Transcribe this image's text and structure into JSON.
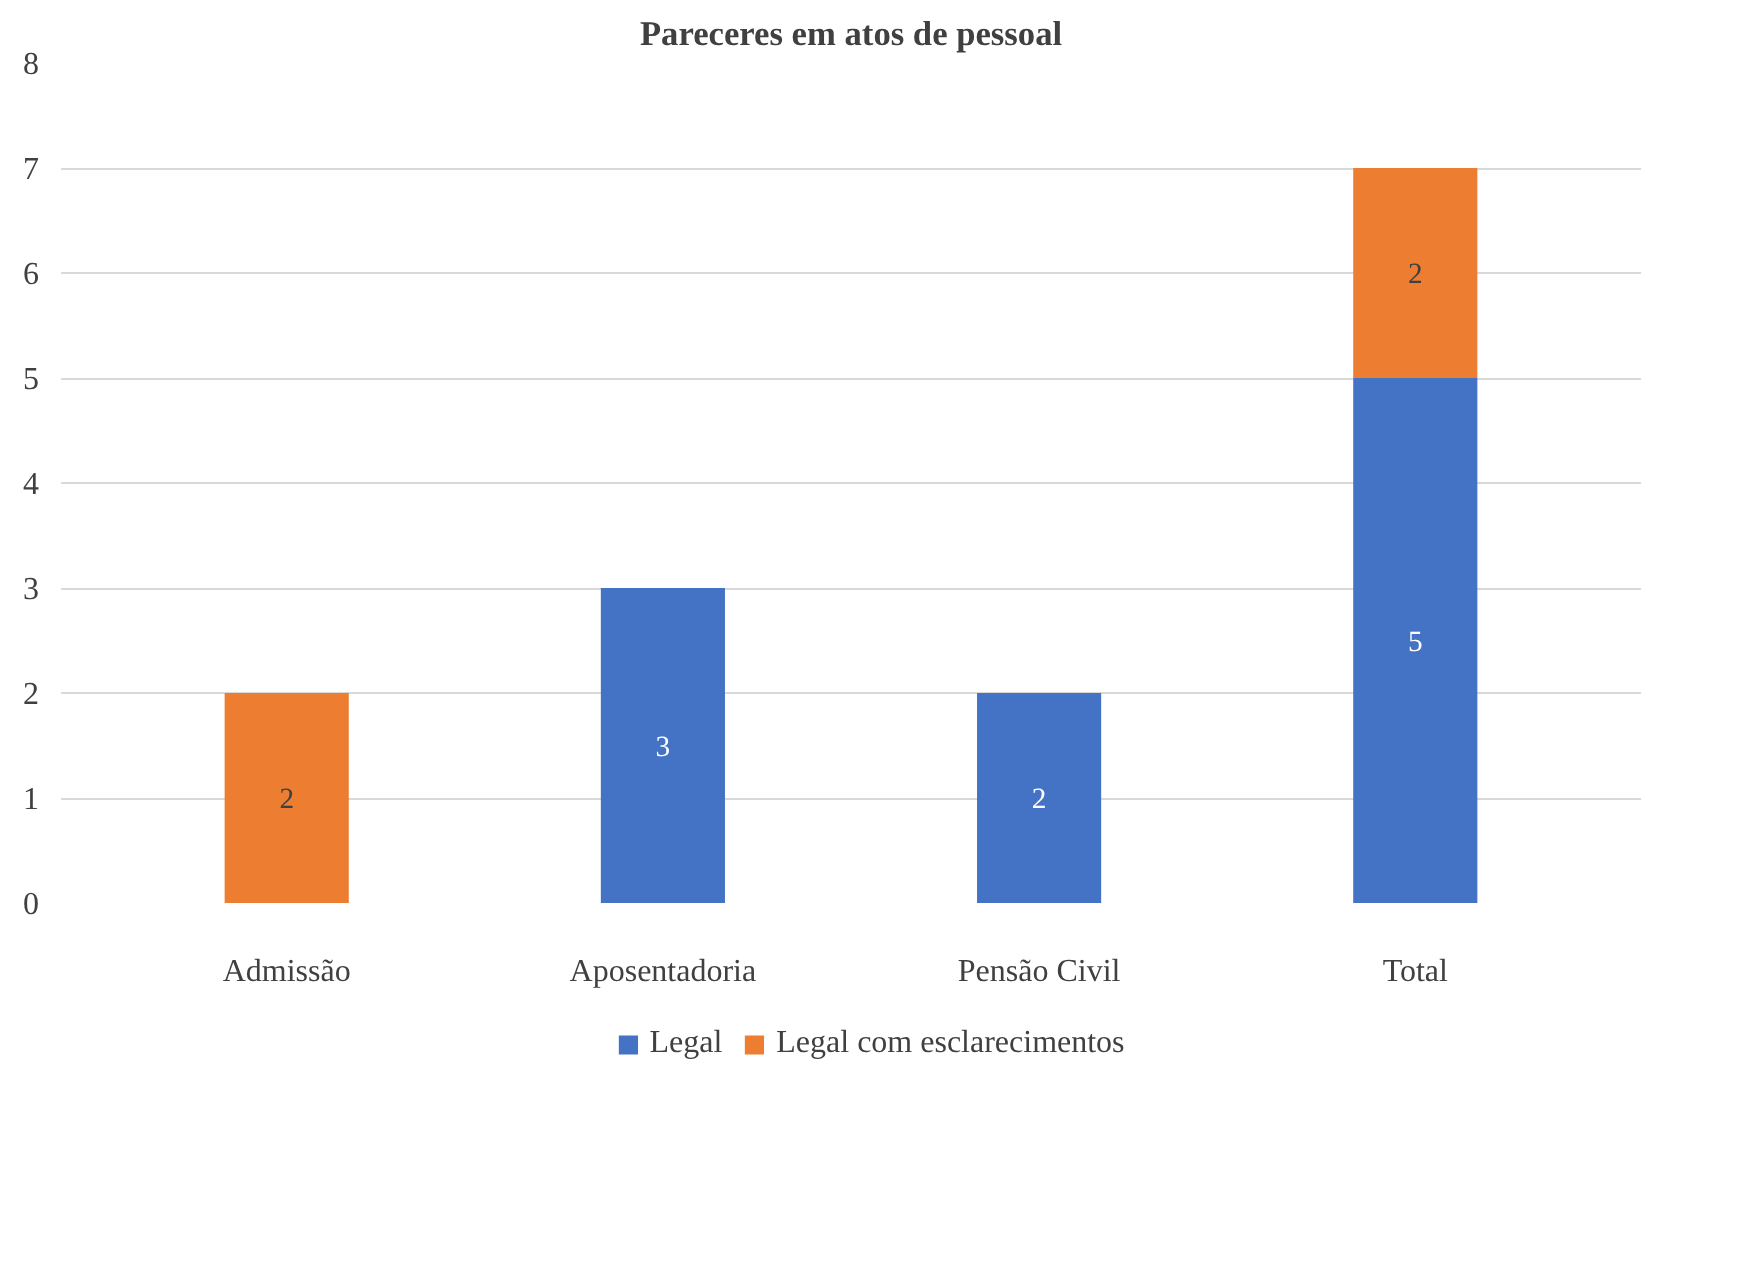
{
  "chart_data": {
    "type": "bar",
    "title": "Pareceres em atos de pessoal",
    "categories": [
      "Admissão",
      "Aposentadoria",
      "Pensão Civil",
      "Total"
    ],
    "stacked": true,
    "series": [
      {
        "name": "Legal",
        "color": "#4472c4",
        "values": [
          0,
          3,
          2,
          5
        ],
        "value_labels": [
          null,
          "3",
          "2",
          "5"
        ]
      },
      {
        "name": "Legal com esclarecimentos",
        "color": "#ed7d31",
        "values": [
          2,
          0,
          0,
          2
        ],
        "value_labels": [
          "2",
          null,
          null,
          "2"
        ]
      }
    ],
    "ylim": [
      0,
      8
    ],
    "yticks": [
      0,
      1,
      2,
      3,
      4,
      5,
      6,
      7,
      8
    ],
    "grid": "y",
    "legend": "bottom"
  }
}
